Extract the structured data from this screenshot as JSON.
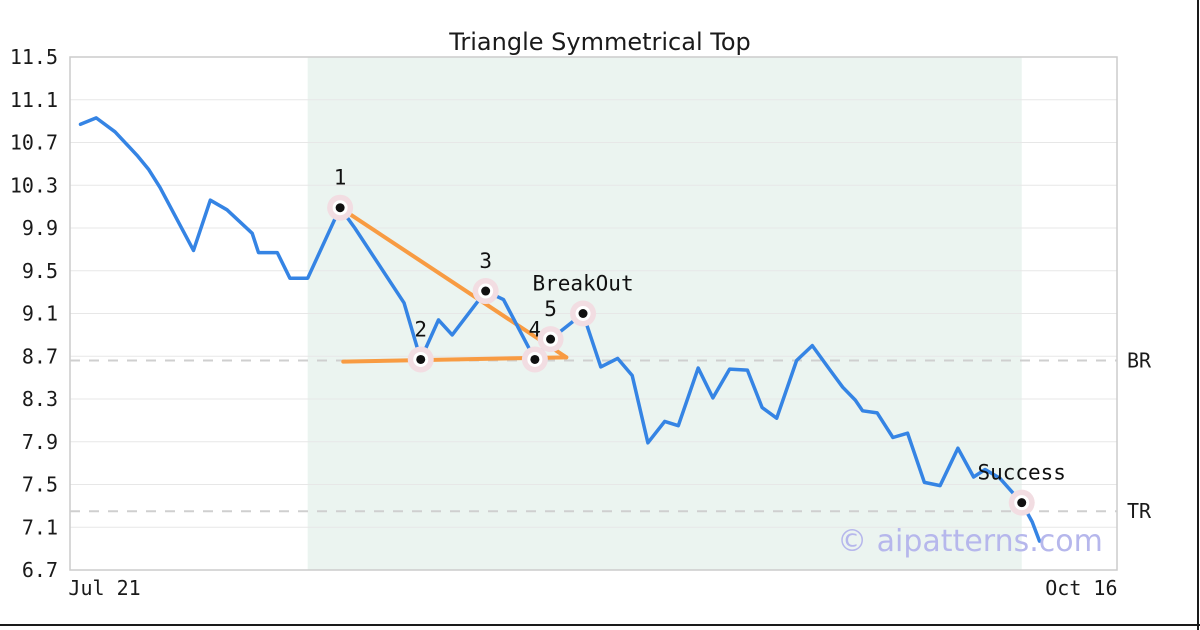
{
  "page": {
    "watermark": "© aipatterns.com"
  },
  "chart_data": {
    "type": "line",
    "title": "Triangle Symmetrical Top",
    "xlabel": "",
    "ylabel": "",
    "x_axis": {
      "tick_labels": [
        "Jul 21",
        "Oct 16"
      ],
      "tick_positions": [
        0.033,
        0.966
      ]
    },
    "y_axis": {
      "ticks": [
        11.5,
        11.1,
        10.7,
        10.3,
        9.9,
        9.5,
        9.1,
        8.7,
        8.3,
        7.9,
        7.5,
        7.1,
        6.7
      ],
      "ylim": [
        6.7,
        11.5
      ],
      "grid": true
    },
    "legend": "none",
    "series": [
      {
        "name": "price",
        "color": "#3584e4",
        "x_unit": "fraction-of-plot-width",
        "points": [
          [
            0.01,
            10.87
          ],
          [
            0.025,
            10.93
          ],
          [
            0.043,
            10.8
          ],
          [
            0.064,
            10.58
          ],
          [
            0.075,
            10.45
          ],
          [
            0.086,
            10.28
          ],
          [
            0.118,
            9.69
          ],
          [
            0.134,
            10.16
          ],
          [
            0.15,
            10.07
          ],
          [
            0.174,
            9.85
          ],
          [
            0.18,
            9.67
          ],
          [
            0.198,
            9.67
          ],
          [
            0.21,
            9.43
          ],
          [
            0.227,
            9.43
          ],
          [
            0.258,
            10.09
          ],
          [
            0.272,
            9.9
          ],
          [
            0.319,
            9.2
          ],
          [
            0.335,
            8.67
          ],
          [
            0.352,
            9.04
          ],
          [
            0.365,
            8.9
          ],
          [
            0.397,
            9.31
          ],
          [
            0.414,
            9.23
          ],
          [
            0.436,
            8.82
          ],
          [
            0.444,
            8.67
          ],
          [
            0.459,
            8.86
          ],
          [
            0.49,
            9.1
          ],
          [
            0.507,
            8.6
          ],
          [
            0.523,
            8.68
          ],
          [
            0.537,
            8.52
          ],
          [
            0.552,
            7.89
          ],
          [
            0.568,
            8.09
          ],
          [
            0.581,
            8.05
          ],
          [
            0.6,
            8.59
          ],
          [
            0.614,
            8.31
          ],
          [
            0.63,
            8.58
          ],
          [
            0.647,
            8.57
          ],
          [
            0.661,
            8.22
          ],
          [
            0.675,
            8.12
          ],
          [
            0.694,
            8.66
          ],
          [
            0.709,
            8.8
          ],
          [
            0.726,
            8.57
          ],
          [
            0.738,
            8.41
          ],
          [
            0.75,
            8.29
          ],
          [
            0.757,
            8.19
          ],
          [
            0.771,
            8.17
          ],
          [
            0.786,
            7.94
          ],
          [
            0.8,
            7.98
          ],
          [
            0.816,
            7.52
          ],
          [
            0.831,
            7.49
          ],
          [
            0.848,
            7.84
          ],
          [
            0.863,
            7.57
          ],
          [
            0.874,
            7.64
          ],
          [
            0.888,
            7.56
          ],
          [
            0.909,
            7.33
          ],
          [
            0.919,
            7.15
          ],
          [
            0.926,
            6.97
          ]
        ]
      }
    ],
    "levels": [
      {
        "name": "BR",
        "value": 8.66
      },
      {
        "name": "TR",
        "value": 7.25
      }
    ],
    "pattern": {
      "points": [
        {
          "label": "1",
          "x": 0.258,
          "y": 10.09
        },
        {
          "label": "2",
          "x": 0.335,
          "y": 8.67
        },
        {
          "label": "3",
          "x": 0.397,
          "y": 9.31
        },
        {
          "label": "4",
          "x": 0.444,
          "y": 8.67
        },
        {
          "label": "5",
          "x": 0.459,
          "y": 8.86
        },
        {
          "label": "BreakOut",
          "x": 0.49,
          "y": 9.1
        },
        {
          "label": "Success",
          "x": 0.909,
          "y": 7.33
        }
      ],
      "trendlines": [
        {
          "name": "upper-trendline",
          "from": [
            0.258,
            10.09
          ],
          "to": [
            0.474,
            8.69
          ]
        },
        {
          "name": "lower-trendline",
          "from": [
            0.261,
            8.65
          ],
          "to": [
            0.474,
            8.69
          ]
        }
      ],
      "shaded_region": {
        "x0": 0.227,
        "x1": 0.909
      }
    },
    "colors": {
      "line": "#3584e4",
      "trendline": "#f89b42",
      "shade": "#ebf4f0",
      "grid": "#e7e7e7",
      "border": "#cccccc",
      "dash": "#cfcfcf",
      "halo": "#f2dde2",
      "dot": "#111111",
      "watermark": "#b6b7ec"
    }
  }
}
